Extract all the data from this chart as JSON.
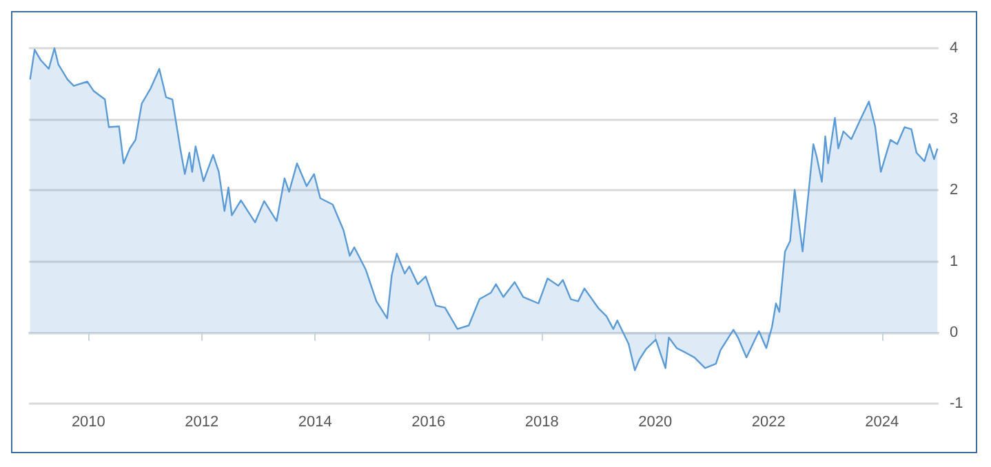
{
  "chart_data": {
    "type": "area",
    "x": [
      2008.97,
      2009.05,
      2009.16,
      2009.3,
      2009.4,
      2009.47,
      2009.63,
      2009.74,
      2009.98,
      2010.09,
      2010.29,
      2010.36,
      2010.54,
      2010.62,
      2010.73,
      2010.83,
      2010.94,
      2011.1,
      2011.25,
      2011.37,
      2011.48,
      2011.62,
      2011.7,
      2011.78,
      2011.83,
      2011.89,
      2012.03,
      2012.2,
      2012.3,
      2012.4,
      2012.47,
      2012.53,
      2012.69,
      2012.94,
      2013.1,
      2013.32,
      2013.46,
      2013.54,
      2013.68,
      2013.85,
      2013.98,
      2014.09,
      2014.31,
      2014.5,
      2014.61,
      2014.69,
      2014.89,
      2015.08,
      2015.27,
      2015.35,
      2015.44,
      2015.58,
      2015.66,
      2015.81,
      2015.95,
      2016.13,
      2016.29,
      2016.51,
      2016.71,
      2016.9,
      2017.1,
      2017.19,
      2017.32,
      2017.52,
      2017.67,
      2017.94,
      2018.1,
      2018.29,
      2018.37,
      2018.51,
      2018.64,
      2018.75,
      2019.0,
      2019.14,
      2019.26,
      2019.33,
      2019.53,
      2019.64,
      2019.72,
      2019.84,
      2020.01,
      2020.18,
      2020.24,
      2020.38,
      2020.53,
      2020.69,
      2020.88,
      2021.07,
      2021.15,
      2021.38,
      2021.46,
      2021.61,
      2021.83,
      2021.96,
      2022.06,
      2022.13,
      2022.19,
      2022.29,
      2022.38,
      2022.46,
      2022.6,
      2022.71,
      2022.79,
      2022.85,
      2022.94,
      2023.0,
      2023.05,
      2023.17,
      2023.23,
      2023.32,
      2023.46,
      2023.61,
      2023.77,
      2023.88,
      2023.98,
      2024.15,
      2024.27,
      2024.4,
      2024.52,
      2024.61,
      2024.75,
      2024.84,
      2024.92,
      2024.98
    ],
    "series": [
      {
        "color": "#5b9bd5",
        "values": [
          3.56,
          3.98,
          3.83,
          3.71,
          4.0,
          3.77,
          3.56,
          3.47,
          3.53,
          3.4,
          3.28,
          2.89,
          2.9,
          2.38,
          2.59,
          2.71,
          3.22,
          3.44,
          3.71,
          3.31,
          3.28,
          2.59,
          2.23,
          2.53,
          2.26,
          2.62,
          2.13,
          2.5,
          2.26,
          1.71,
          2.04,
          1.65,
          1.86,
          1.55,
          1.85,
          1.57,
          2.17,
          1.98,
          2.38,
          2.06,
          2.23,
          1.89,
          1.8,
          1.44,
          1.08,
          1.2,
          0.89,
          0.44,
          0.2,
          0.8,
          1.11,
          0.83,
          0.93,
          0.68,
          0.79,
          0.38,
          0.35,
          0.05,
          0.1,
          0.47,
          0.56,
          0.68,
          0.5,
          0.71,
          0.5,
          0.41,
          0.76,
          0.66,
          0.74,
          0.47,
          0.44,
          0.62,
          0.34,
          0.23,
          0.05,
          0.17,
          -0.16,
          -0.53,
          -0.38,
          -0.23,
          -0.1,
          -0.5,
          -0.07,
          -0.22,
          -0.28,
          -0.35,
          -0.5,
          -0.44,
          -0.25,
          0.04,
          -0.07,
          -0.35,
          0.02,
          -0.22,
          0.08,
          0.41,
          0.29,
          1.14,
          1.29,
          2.01,
          1.14,
          2.01,
          2.65,
          2.47,
          2.12,
          2.76,
          2.38,
          3.02,
          2.59,
          2.83,
          2.72,
          2.98,
          3.25,
          2.9,
          2.26,
          2.71,
          2.65,
          2.89,
          2.86,
          2.53,
          2.41,
          2.65,
          2.44,
          2.59
        ]
      }
    ],
    "xlim": [
      2008.95,
      2025
    ],
    "xticks": [
      2010,
      2012,
      2014,
      2016,
      2018,
      2020,
      2022,
      2024
    ],
    "ylim": [
      -1,
      4
    ],
    "yticks": [
      -1,
      0,
      1,
      2,
      3,
      4
    ],
    "grid": "y",
    "marker": "none",
    "line_style": "solid"
  }
}
